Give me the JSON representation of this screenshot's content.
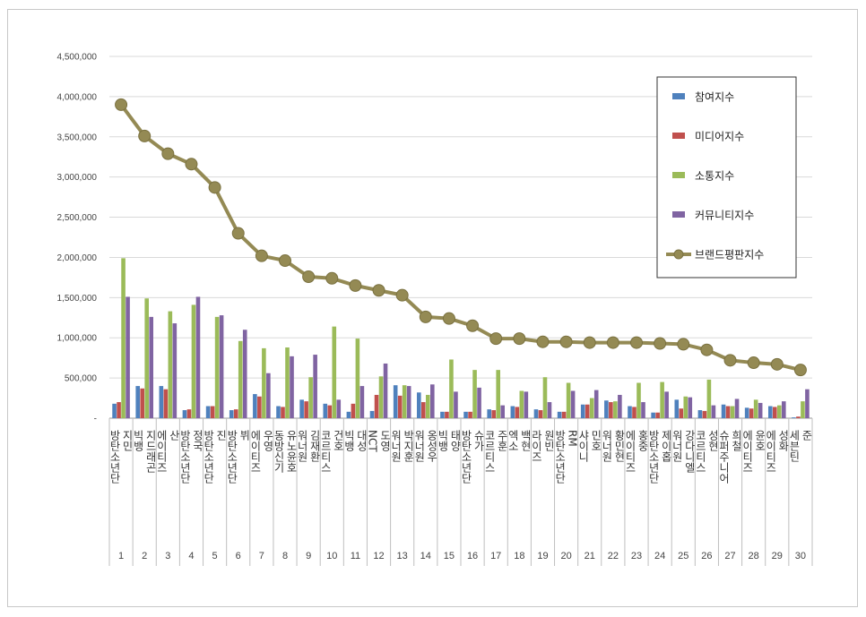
{
  "chart_data": {
    "type": "bar",
    "title": "",
    "xlabel": "",
    "ylabel": "",
    "ylim": [
      0,
      4500000
    ],
    "yticks": [
      "-",
      "500,000",
      "1,000,000",
      "1,500,000",
      "2,000,000",
      "2,500,000",
      "3,000,000",
      "3,500,000",
      "4,000,000",
      "4,500,000"
    ],
    "ranks": [
      "1",
      "2",
      "3",
      "4",
      "5",
      "6",
      "7",
      "8",
      "9",
      "10",
      "11",
      "12",
      "13",
      "14",
      "15",
      "16",
      "17",
      "18",
      "19",
      "20",
      "21",
      "22",
      "23",
      "24",
      "25",
      "26",
      "27",
      "28",
      "29",
      "30"
    ],
    "categories": [
      "방탄소년단 지민",
      "빅뱅 지드래곤",
      "에이티즈 산",
      "방탄소년단 정국",
      "방탄소년단 진",
      "방탄소년단 뷔",
      "에이티즈 우영",
      "동방신기 유노윤호",
      "워너원 김재환",
      "코르티스 건호",
      "빅뱅 대성",
      "NCT 도영",
      "워너원 박지훈",
      "워너원 옹성우",
      "빅뱅 태양",
      "방탄소년단 슈가",
      "코르티스 주훈",
      "엑소 백현",
      "라이즈 원빈",
      "방탄소년단 RM",
      "샤이니 민호",
      "워너원 황민현",
      "에이티즈 홍중",
      "방탄소년단 제이홉",
      "워너원 강다니엘",
      "코르티스 성현",
      "슈퍼주니어 희철",
      "에이티즈 윤호",
      "에이티즈 성화",
      "세븐틴 준"
    ],
    "series": [
      {
        "name": "참여지수",
        "type": "bar",
        "color": "#4f81bd",
        "values": [
          180000,
          400000,
          400000,
          100000,
          150000,
          100000,
          300000,
          150000,
          230000,
          180000,
          80000,
          90000,
          410000,
          320000,
          80000,
          80000,
          110000,
          150000,
          110000,
          80000,
          170000,
          220000,
          150000,
          70000,
          230000,
          100000,
          170000,
          130000,
          150000,
          10000
        ]
      },
      {
        "name": "미디어지수",
        "type": "bar",
        "color": "#c0504d",
        "values": [
          200000,
          370000,
          360000,
          110000,
          150000,
          110000,
          270000,
          140000,
          210000,
          160000,
          180000,
          290000,
          280000,
          200000,
          80000,
          80000,
          100000,
          140000,
          100000,
          80000,
          170000,
          200000,
          140000,
          70000,
          120000,
          90000,
          150000,
          120000,
          140000,
          20000
        ]
      },
      {
        "name": "소통지수",
        "type": "bar",
        "color": "#9bbb59",
        "values": [
          1990000,
          1490000,
          1330000,
          1410000,
          1260000,
          960000,
          870000,
          880000,
          510000,
          1140000,
          990000,
          520000,
          410000,
          290000,
          730000,
          600000,
          600000,
          340000,
          510000,
          440000,
          250000,
          210000,
          440000,
          450000,
          270000,
          480000,
          150000,
          230000,
          160000,
          210000
        ]
      },
      {
        "name": "커뮤니티지수",
        "type": "bar",
        "color": "#8064a2",
        "values": [
          1510000,
          1260000,
          1180000,
          1510000,
          1280000,
          1100000,
          560000,
          770000,
          790000,
          230000,
          400000,
          680000,
          400000,
          420000,
          330000,
          380000,
          160000,
          330000,
          200000,
          340000,
          350000,
          290000,
          200000,
          330000,
          260000,
          160000,
          240000,
          190000,
          210000,
          360000
        ]
      },
      {
        "name": "브랜드평판지수",
        "type": "line",
        "color": "#948a54",
        "values": [
          3900000,
          3510000,
          3290000,
          3160000,
          2870000,
          2300000,
          2020000,
          1960000,
          1760000,
          1740000,
          1650000,
          1590000,
          1530000,
          1260000,
          1240000,
          1150000,
          990000,
          990000,
          950000,
          950000,
          940000,
          940000,
          940000,
          930000,
          920000,
          850000,
          720000,
          690000,
          670000,
          600000
        ]
      }
    ],
    "legend": "top-right"
  }
}
